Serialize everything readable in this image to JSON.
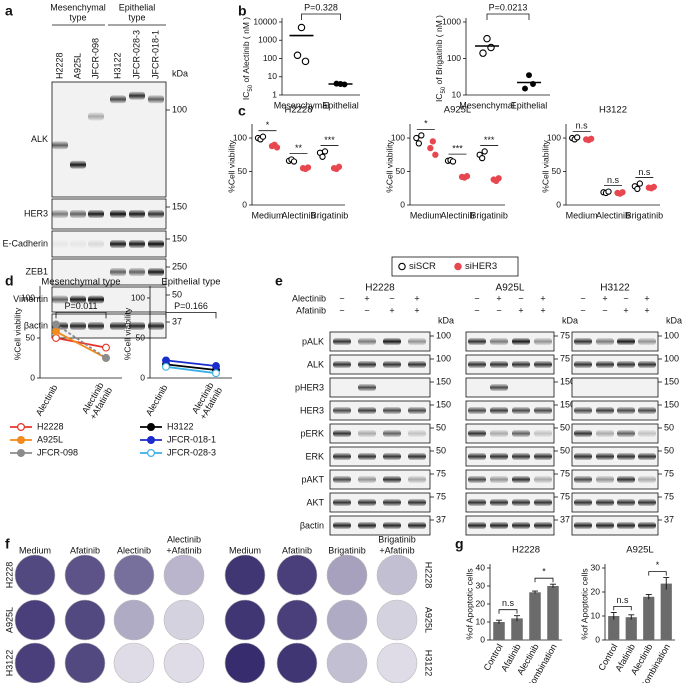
{
  "panel_labels": [
    "a",
    "b",
    "c",
    "d",
    "e",
    "f",
    "g"
  ],
  "blot_a": {
    "groups": [
      [
        "Mesenchymal",
        "type"
      ],
      [
        "Epithelial",
        "type"
      ]
    ],
    "lanes": [
      "H2228",
      "A925L",
      "JFCR-098",
      "H3122",
      "JFCR-028-3",
      "JFCR-018-1"
    ],
    "unit": "kDa",
    "rows": [
      {
        "label": "ALK",
        "markers": [
          100
        ]
      },
      {
        "label": "HER3",
        "markers": [
          150
        ]
      },
      {
        "label": "E-Cadherin",
        "markers": [
          150
        ]
      },
      {
        "label": "ZEB1",
        "markers": [
          250
        ]
      },
      {
        "label": "Vimentin",
        "markers": [
          50
        ]
      },
      {
        "label": "βactin",
        "markers": [
          37
        ]
      }
    ]
  },
  "blot_e": {
    "treatments": [
      {
        "label": "Alectinib",
        "signs": [
          "−",
          "+",
          "−",
          "+"
        ]
      },
      {
        "label": "Afatinib",
        "signs": [
          "−",
          "−",
          "+",
          "+"
        ]
      }
    ],
    "unit": "kDa",
    "rows": [
      "pALK",
      "ALK",
      "pHER3",
      "HER3",
      "pERK",
      "ERK",
      "pAKT",
      "AKT",
      "βactin"
    ],
    "blocks": [
      {
        "title": "H2228",
        "markers": [
          100,
          100,
          150,
          150,
          50,
          50,
          75,
          75,
          37
        ]
      },
      {
        "title": "A925L",
        "markers": [
          75,
          75,
          150,
          150,
          50,
          50,
          75,
          75,
          37
        ]
      },
      {
        "title": "H3122",
        "markers": [
          100,
          100,
          150,
          150,
          50,
          50,
          75,
          75,
          37
        ]
      }
    ]
  },
  "wells_f": {
    "left": {
      "columns": [
        [
          "Medium"
        ],
        [
          "Afatinib"
        ],
        [
          "Alectinib"
        ],
        [
          "Alectinib",
          "+Afatinib"
        ]
      ]
    },
    "right": {
      "columns": [
        [
          "Medium"
        ],
        [
          "Afatinib"
        ],
        [
          "Brigatinib"
        ],
        [
          "Brigatinib",
          "+Afatinib"
        ]
      ]
    },
    "rows": [
      "H2228",
      "A925L",
      "H3122"
    ]
  },
  "chart_data": [
    {
      "type": "dot",
      "ylabel": {
        "main": "IC",
        "sub": "50",
        "rest": " of Alectinib ( nM )"
      },
      "categories": [
        "Mesenchymal",
        "Epithelial"
      ],
      "values": [
        [
          5000,
          150,
          70
        ],
        [
          4,
          4.2,
          3.8
        ]
      ],
      "means": [
        1800,
        4
      ],
      "markers": [
        "open",
        "filled"
      ],
      "color": "#000000",
      "ylog": true,
      "ylim": [
        1,
        10000
      ],
      "yticks": [
        1,
        10,
        100,
        1000,
        10000
      ],
      "comparison": "P=0.328"
    },
    {
      "type": "dot",
      "ylabel": {
        "main": "IC",
        "sub": "50",
        "rest": " of Brigatinib ( nM )"
      },
      "categories": [
        "Mesenchymal",
        "Epithelial"
      ],
      "values": [
        [
          350,
          140,
          200
        ],
        [
          35,
          15,
          20
        ]
      ],
      "means": [
        220,
        22
      ],
      "markers": [
        "open",
        "filled"
      ],
      "color": "#000000",
      "ylog": true,
      "ylim": [
        10,
        1000
      ],
      "yticks": [
        10,
        100,
        1000
      ],
      "comparison": "P=0.0213"
    },
    {
      "type": "dot-series",
      "title": "H2228",
      "ylabel": "%Cell viability",
      "categories": [
        "Medium",
        "Alectinib",
        "Brigatinib"
      ],
      "ylim": [
        0,
        115
      ],
      "yticks": [
        0,
        50,
        100
      ],
      "series": [
        {
          "name": "siSCR",
          "color": "#000000",
          "marker": "open",
          "values": [
            [
              100,
              98,
              102
            ],
            [
              66,
              68,
              65
            ],
            [
              78,
              72,
              80
            ]
          ]
        },
        {
          "name": "siHER3",
          "color": "#e8474f",
          "marker": "filled",
          "values": [
            [
              88,
              90,
              86
            ],
            [
              55,
              54,
              56
            ],
            [
              55,
              54,
              57
            ]
          ]
        }
      ],
      "sig": [
        "*",
        "**",
        "***"
      ]
    },
    {
      "type": "dot-series",
      "title": "A925L",
      "ylabel": "%Cell viability",
      "categories": [
        "Medium",
        "Alectinib",
        "Brigatinib"
      ],
      "ylim": [
        0,
        115
      ],
      "yticks": [
        0,
        50,
        100
      ],
      "series": [
        {
          "name": "siSCR",
          "color": "#000000",
          "marker": "open",
          "values": [
            [
              100,
              92,
              104
            ],
            [
              66,
              67,
              65
            ],
            [
              75,
              70,
              80
            ]
          ]
        },
        {
          "name": "siHER3",
          "color": "#e8474f",
          "marker": "filled",
          "values": [
            [
              85,
              95,
              75
            ],
            [
              42,
              41,
              43
            ],
            [
              38,
              36,
              40
            ]
          ]
        }
      ],
      "sig": [
        "*",
        "***",
        "***"
      ]
    },
    {
      "type": "dot-series",
      "title": "H3122",
      "ylabel": "%Cell viability",
      "categories": [
        "Medium",
        "Alectinib",
        "Brigatinib"
      ],
      "ylim": [
        0,
        115
      ],
      "yticks": [
        0,
        50,
        100
      ],
      "series": [
        {
          "name": "siSCR",
          "color": "#000000",
          "marker": "open",
          "values": [
            [
              100,
              98,
              101
            ],
            [
              19,
              18,
              20
            ],
            [
              28,
              24,
              32
            ]
          ]
        },
        {
          "name": "siHER3",
          "color": "#e8474f",
          "marker": "filled",
          "values": [
            [
              98,
              97,
              99
            ],
            [
              18,
              17,
              19
            ],
            [
              26,
              25,
              27
            ]
          ]
        }
      ],
      "sig": [
        "n.s",
        "n.s",
        "n.s"
      ]
    },
    {
      "type": "paired-line",
      "title": "Mesenchymal type",
      "ylabel": "%Cell viability",
      "categories": [
        [
          "Alectinib"
        ],
        [
          "Alectinib",
          "+Afatinib"
        ]
      ],
      "ylim": [
        0,
        110
      ],
      "yticks": [
        0,
        50,
        100
      ],
      "comparison": "P=0.011",
      "series": [
        {
          "name": "H2228",
          "color": "#e8342a",
          "marker": "open",
          "dash": false,
          "values": [
            50,
            38
          ]
        },
        {
          "name": "A925L",
          "color": "#f28a1c",
          "marker": "filled",
          "dash": false,
          "values": [
            58,
            25
          ]
        },
        {
          "name": "JFCR-098",
          "color": "#8c8c8c",
          "marker": "filled",
          "dash": true,
          "values": [
            67,
            25
          ]
        }
      ]
    },
    {
      "type": "paired-line",
      "title": "Epithelial type",
      "ylabel": "%Cell viability",
      "categories": [
        [
          "Alectinib"
        ],
        [
          "Alectinib",
          "+Afatinib"
        ]
      ],
      "ylim": [
        0,
        110
      ],
      "yticks": [
        0,
        50,
        100
      ],
      "comparison": "P=0.166",
      "series": [
        {
          "name": "H3122",
          "color": "#000000",
          "marker": "filled",
          "dash": false,
          "values": [
            17,
            10
          ]
        },
        {
          "name": "JFCR-018-1",
          "color": "#1a2ccc",
          "marker": "filled",
          "dash": false,
          "values": [
            22,
            15
          ]
        },
        {
          "name": "JFCR-028-3",
          "color": "#3ab0e8",
          "marker": "open",
          "dash": false,
          "values": [
            14,
            6
          ]
        }
      ]
    },
    {
      "type": "bar",
      "title": "H2228",
      "ylabel": "%of Apoptotic cells",
      "categories": [
        "Control",
        "Afatinib",
        "Alectinib",
        "Combination"
      ],
      "values": [
        10,
        12,
        26.5,
        30
      ],
      "errors": [
        1,
        1.5,
        0.7,
        1
      ],
      "color": "#6b6b6b",
      "ylim": [
        0,
        40
      ],
      "yticks": [
        0,
        10,
        20,
        30,
        40
      ],
      "brackets": [
        "n.s",
        "*"
      ]
    },
    {
      "type": "bar",
      "title": "A925L",
      "ylabel": "%of Apoptotic cells",
      "categories": [
        "Control",
        "Afatinib",
        "Alectinib",
        "Combination"
      ],
      "values": [
        10,
        9.5,
        18,
        23.5
      ],
      "errors": [
        1.5,
        1,
        1,
        2.5
      ],
      "color": "#6b6b6b",
      "ylim": [
        0,
        30
      ],
      "yticks": [
        0,
        10,
        20,
        30
      ],
      "brackets": [
        "n.s",
        "*"
      ]
    }
  ]
}
